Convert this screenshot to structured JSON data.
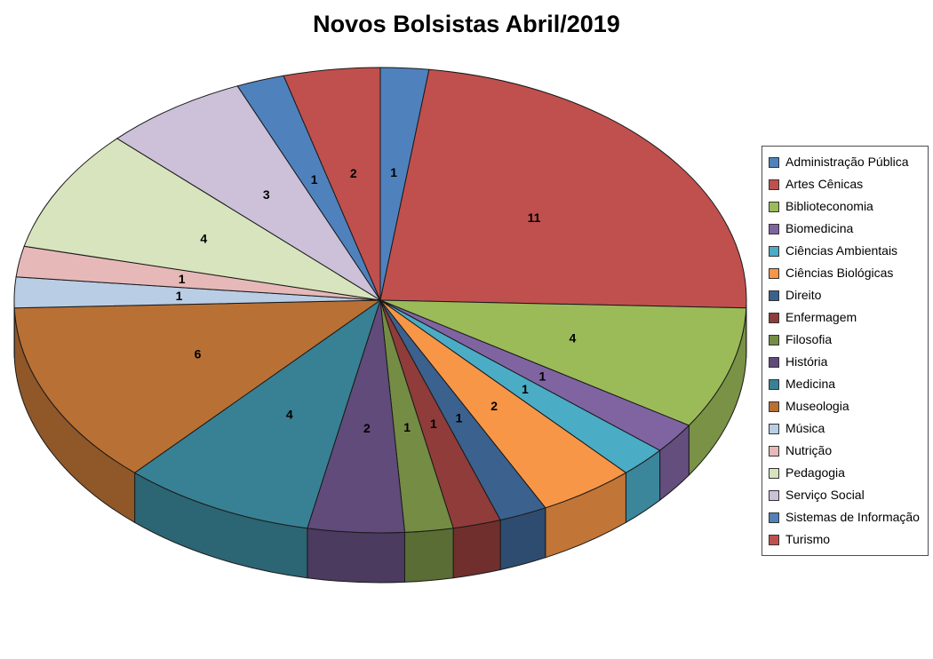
{
  "title": "Novos Bolsistas Abril/2019",
  "chart_data": {
    "type": "pie",
    "title": "Novos Bolsistas Abril/2019",
    "effect": "3d",
    "direction": "clockwise",
    "start_angle_deg": 0,
    "data_labels": "value",
    "legend_position": "right",
    "total": 47,
    "categories": [
      "Administração Pública",
      "Artes Cênicas",
      "Biblioteconomia",
      "Biomedicina",
      "Ciências Ambientais",
      "Ciências Biológicas",
      "Direito",
      "Enfermagem",
      "Filosofia",
      "História",
      "Medicina",
      "Museologia",
      "Música",
      "Nutrição",
      "Pedagogia",
      "Serviço Social",
      "Sistemas de Informação",
      "Turismo"
    ],
    "values": [
      1,
      11,
      4,
      1,
      1,
      2,
      1,
      1,
      1,
      2,
      4,
      6,
      1,
      1,
      4,
      3,
      1,
      2
    ],
    "colors": [
      "#4F81BD",
      "#C0504D",
      "#9BBB59",
      "#8064A2",
      "#4BACC6",
      "#F79646",
      "#3B618E",
      "#903C3A",
      "#748C43",
      "#604B7A",
      "#388194",
      "#B97034",
      "#B9CDE5",
      "#E6B9B8",
      "#D7E4BD",
      "#CCC1D9",
      "#4F81BD",
      "#C0504D"
    ],
    "outline_color": "#1a1a1a"
  }
}
